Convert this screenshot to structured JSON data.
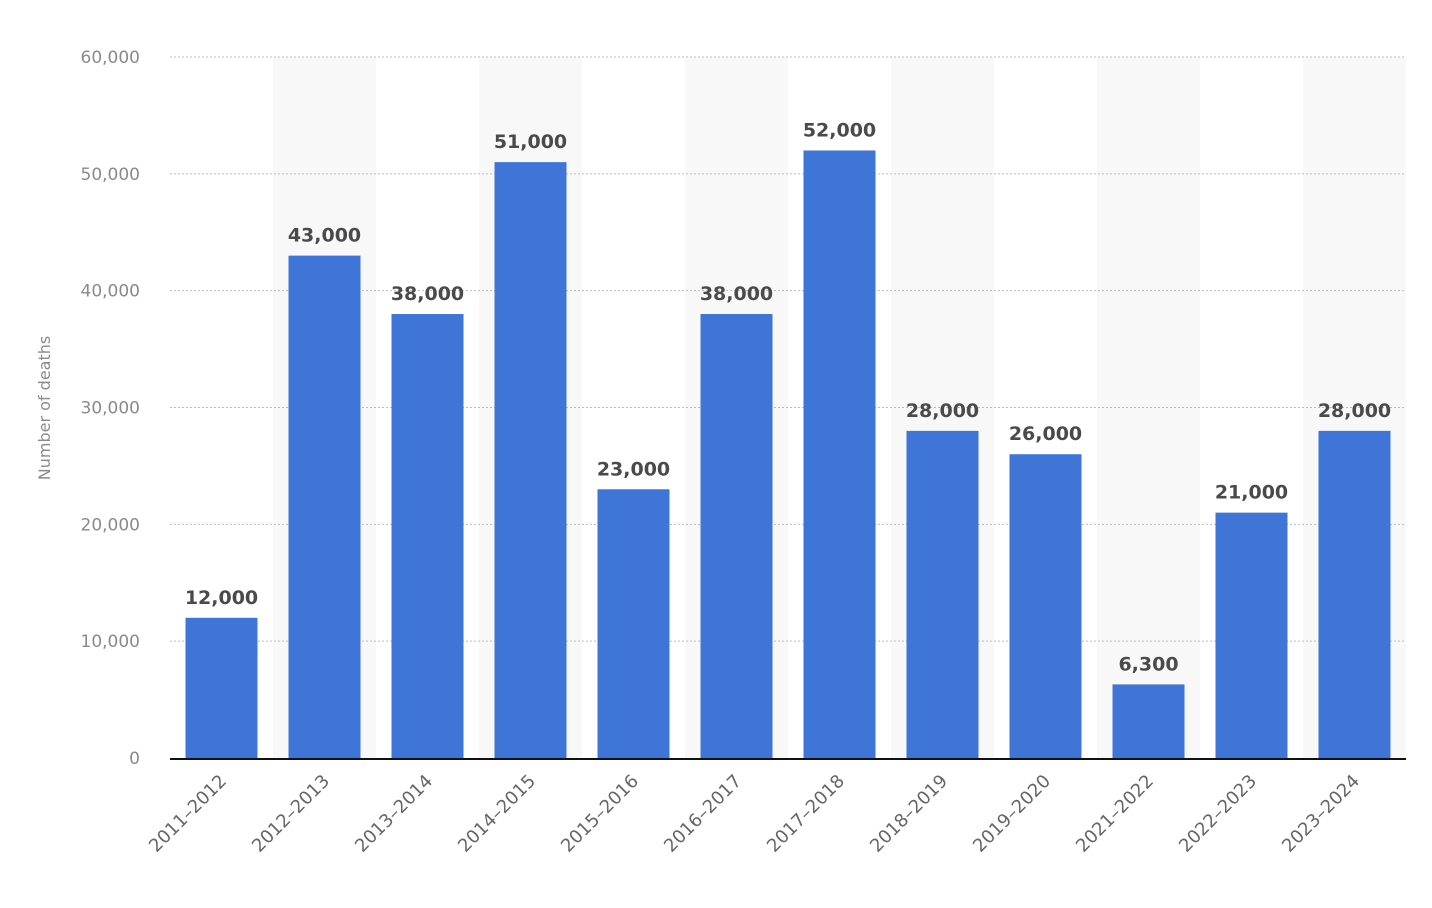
{
  "chart_data": {
    "type": "bar",
    "title": "",
    "xlabel": "",
    "ylabel": "Number of deaths",
    "ylim": [
      0,
      60000
    ],
    "yticks": [
      0,
      10000,
      20000,
      30000,
      40000,
      50000,
      60000
    ],
    "ytick_labels": [
      "0",
      "10,000",
      "20,000",
      "30,000",
      "40,000",
      "50,000",
      "60,000"
    ],
    "grid": true,
    "categories": [
      "2011–2012",
      "2012–2013",
      "2013–2014",
      "2014–2015",
      "2015–2016",
      "2016–2017",
      "2017–2018",
      "2018–2019",
      "2019–2020",
      "2021–2022",
      "2022–2023",
      "2023–2024"
    ],
    "values": [
      12000,
      43000,
      38000,
      51000,
      23000,
      38000,
      52000,
      28000,
      26000,
      6300,
      21000,
      28000
    ],
    "data_labels": [
      "12,000",
      "43,000",
      "38,000",
      "51,000",
      "23,000",
      "38,000",
      "52,000",
      "28,000",
      "26,000",
      "6,300",
      "21,000",
      "28,000"
    ],
    "bar_color": "#3e75d6",
    "band_color": "#f8f8f8"
  }
}
